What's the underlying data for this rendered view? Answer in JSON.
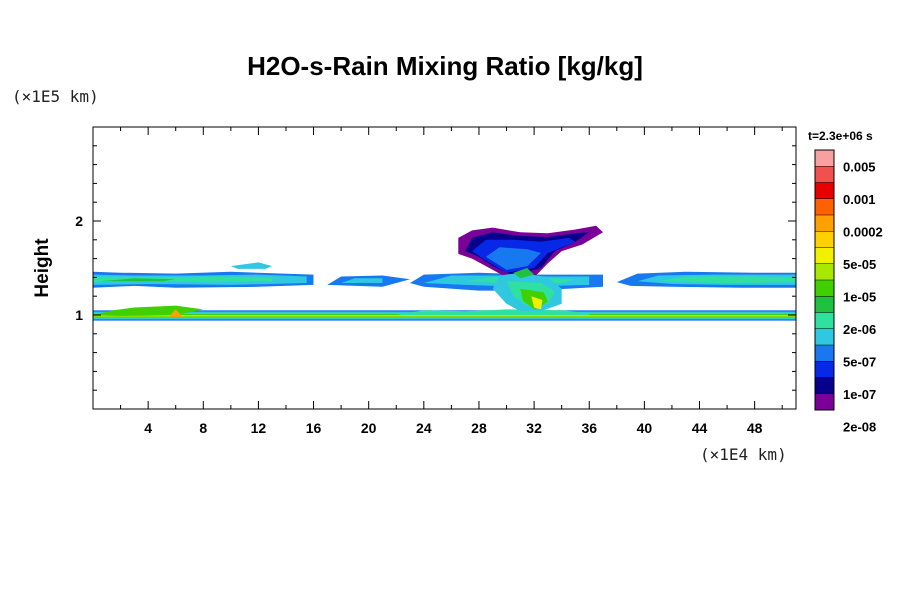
{
  "chart_data": {
    "type": "heatmap",
    "title": "H2O-s-Rain Mixing Ratio [kg/kg]",
    "ylabel": "Height",
    "x_unit": "(×1E4 km)",
    "y_unit": "(×1E5 km)",
    "time_label": "t=2.3e+06 s",
    "xlim": [
      0,
      51
    ],
    "ylim": [
      0,
      3
    ],
    "x_ticks": [
      4,
      8,
      12,
      16,
      20,
      24,
      28,
      32,
      36,
      40,
      44,
      48
    ],
    "y_ticks": [
      1,
      2
    ],
    "colorbar": {
      "labels": [
        "0.005",
        "0.001",
        "0.0002",
        "5e-05",
        "1e-05",
        "2e-06",
        "5e-07",
        "1e-07",
        "2e-08"
      ],
      "colors": [
        "#f8a0a0",
        "#f05050",
        "#e60000",
        "#ff6000",
        "#ffa000",
        "#ffd000",
        "#f0f000",
        "#a8e800",
        "#40d000",
        "#20c040",
        "#30e0a0",
        "#30c8e0",
        "#1878f0",
        "#0828e8",
        "#08008c",
        "#7a0098"
      ]
    },
    "regions": [
      {
        "name": "surface band",
        "x": [
          0,
          51
        ],
        "y": [
          0.95,
          1.04
        ],
        "level": "5e-05"
      },
      {
        "name": "upper layer west",
        "x": [
          0,
          16
        ],
        "y": [
          1.3,
          1.45
        ],
        "level": "2e-06"
      },
      {
        "name": "upper layer middle",
        "x": [
          18,
          37
        ],
        "y": [
          1.25,
          1.45
        ],
        "level": "2e-06"
      },
      {
        "name": "upper layer east",
        "x": [
          38,
          51
        ],
        "y": [
          1.3,
          1.45
        ],
        "level": "2e-06"
      },
      {
        "name": "convective cloud",
        "x": [
          26,
          37
        ],
        "y": [
          1.0,
          1.95
        ],
        "level": "1e-07"
      }
    ]
  }
}
